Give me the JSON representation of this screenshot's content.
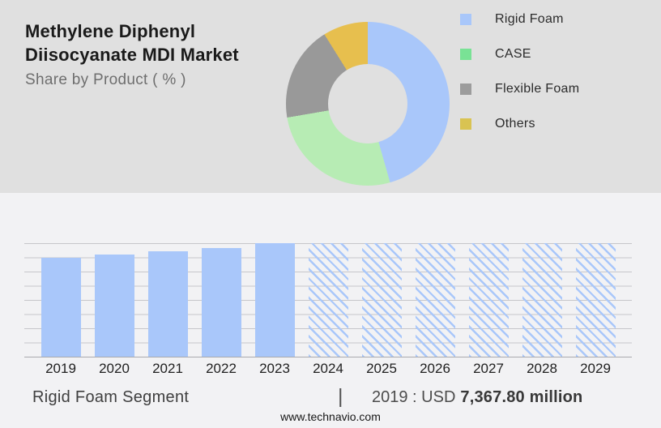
{
  "header": {
    "title_line1": "Methylene Diphenyl",
    "title_line2": "Diisocyanate MDI Market",
    "subtitle": "Share by Product ( % )"
  },
  "footer": {
    "segment_label": "Rigid Foam Segment",
    "divider": "|",
    "value_prefix": "2019 : USD",
    "value_bold": "7,367.80 million",
    "website": "www.technavio.com"
  },
  "colors": {
    "top_background": "#e0e0e0",
    "bottom_background": "#f2f2f4",
    "bar_blue": "#a9c7fa",
    "gridline": "#c6c6ca",
    "axis_baseline": "#aaaaae"
  },
  "chart_data": [
    {
      "type": "pie",
      "subtype": "donut",
      "title": "Share by Product ( % )",
      "labels": [
        "Rigid Foam",
        "CASE",
        "Flexible Foam",
        "Others"
      ],
      "values_pct": [
        45.6,
        26.7,
        18.8,
        8.9
      ],
      "slice_colors": [
        "#a9c7fa",
        "#b7ecb4",
        "#999999",
        "#e7bf4e"
      ],
      "legend_colors": [
        "#a9c7fa",
        "#79e295",
        "#9c9c9c",
        "#d9c352"
      ],
      "legend_position": "right",
      "start_angle_deg": 0
    },
    {
      "type": "bar",
      "categories": [
        "2019",
        "2020",
        "2021",
        "2022",
        "2023",
        "2024",
        "2025",
        "2026",
        "2027",
        "2028",
        "2029"
      ],
      "values_relative": [
        0.874,
        0.902,
        0.93,
        0.958,
        1.0,
        1.0,
        1.0,
        1.0,
        1.0,
        1.0,
        1.0
      ],
      "bar_styles": [
        "solid",
        "solid",
        "solid",
        "solid",
        "solid",
        "hatch",
        "hatch",
        "hatch",
        "hatch",
        "hatch",
        "hatch"
      ],
      "known_values": {
        "2019": "USD 7,367.80 million"
      },
      "xlabel": "",
      "ylabel": "",
      "y_axis_labeled": false,
      "gridline_count": 9,
      "legend_position": "none",
      "note": "2024-2029 shown as hatched forecast bars at full plot height"
    }
  ]
}
